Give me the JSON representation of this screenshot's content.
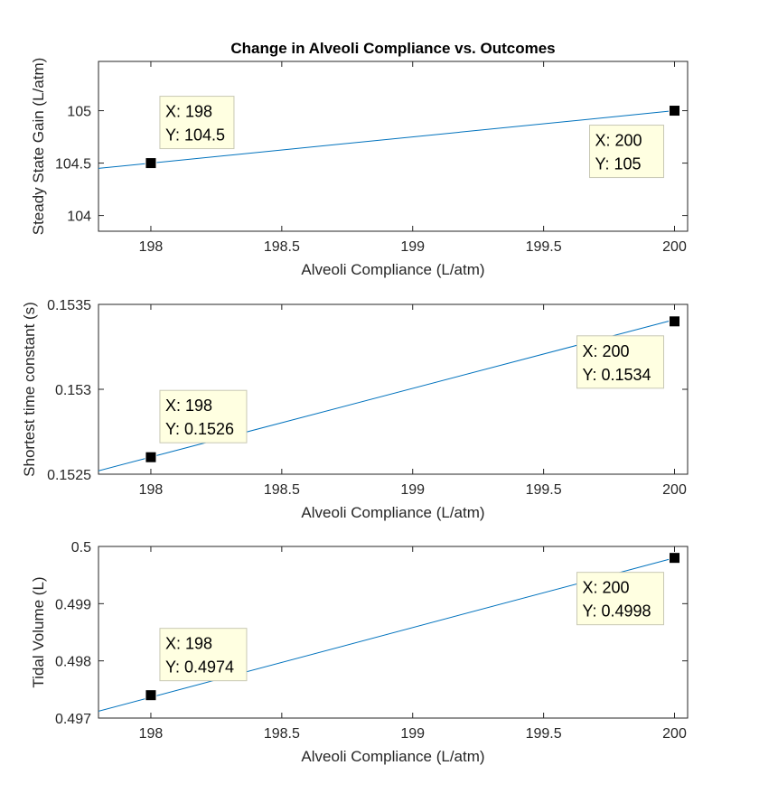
{
  "figure": {
    "title": "Change in Alveoli Compliance vs. Outcomes"
  },
  "colors": {
    "line": "#0072bd",
    "marker": "#000000",
    "tip_bg": "#ffffe1",
    "tip_border": "#c8c8b4",
    "axis": "#262626"
  },
  "chart_data": [
    {
      "type": "line",
      "title": "Change in Alveoli Compliance vs. Outcomes",
      "xlabel": "Alveoli Compliance (L/atm)",
      "ylabel": "Steady State Gain (L/atm)",
      "xlim": [
        197.8,
        200.05
      ],
      "ylim": [
        103.85,
        105.47
      ],
      "xticks": [
        198,
        198.5,
        199,
        199.5,
        200
      ],
      "xtick_labels": [
        "198",
        "198.5",
        "199",
        "199.5",
        "200"
      ],
      "yticks": [
        104,
        104.5,
        105
      ],
      "ytick_labels": [
        "104",
        "104.5",
        "105"
      ],
      "series": [
        {
          "x": [
            197.8,
            200
          ],
          "y": [
            104.45,
            105.0
          ]
        }
      ],
      "datatips": [
        {
          "x": 198,
          "y": 104.5,
          "text_x": "X: 198",
          "text_y": "Y: 104.5",
          "position": "upper-right"
        },
        {
          "x": 200,
          "y": 105,
          "text_x": "X: 200",
          "text_y": "Y: 105",
          "position": "lower-left"
        }
      ]
    },
    {
      "type": "line",
      "xlabel": "Alveoli Compliance (L/atm)",
      "ylabel": "Shortest time constant (s)",
      "xlim": [
        197.8,
        200.05
      ],
      "ylim": [
        0.1525,
        0.1535
      ],
      "xticks": [
        198,
        198.5,
        199,
        199.5,
        200
      ],
      "xtick_labels": [
        "198",
        "198.5",
        "199",
        "199.5",
        "200"
      ],
      "yticks": [
        0.1525,
        0.153,
        0.1535
      ],
      "ytick_labels": [
        "0.1525",
        "0.153",
        "0.1535"
      ],
      "series": [
        {
          "x": [
            197.8,
            200
          ],
          "y": [
            0.15252,
            0.15341
          ]
        }
      ],
      "datatips": [
        {
          "x": 198,
          "y": 0.1526,
          "text_x": "X: 198",
          "text_y": "Y: 0.1526",
          "position": "upper-right"
        },
        {
          "x": 200,
          "y": 0.1534,
          "text_x": "X: 200",
          "text_y": "Y: 0.1534",
          "position": "lower-left"
        }
      ]
    },
    {
      "type": "line",
      "xlabel": "Alveoli Compliance (L/atm)",
      "ylabel": "Tidal Volume (L)",
      "xlim": [
        197.8,
        200.05
      ],
      "ylim": [
        0.497,
        0.5
      ],
      "xticks": [
        198,
        198.5,
        199,
        199.5,
        200
      ],
      "xtick_labels": [
        "198",
        "198.5",
        "199",
        "199.5",
        "200"
      ],
      "yticks": [
        0.497,
        0.498,
        0.499,
        0.5
      ],
      "ytick_labels": [
        "0.497",
        "0.498",
        "0.499",
        "0.5"
      ],
      "series": [
        {
          "x": [
            197.8,
            200
          ],
          "y": [
            0.49712,
            0.4998
          ]
        }
      ],
      "datatips": [
        {
          "x": 198,
          "y": 0.4974,
          "text_x": "X: 198",
          "text_y": "Y: 0.4974",
          "position": "upper-right"
        },
        {
          "x": 200,
          "y": 0.4998,
          "text_x": "X: 200",
          "text_y": "Y: 0.4998",
          "position": "lower-left"
        }
      ]
    }
  ]
}
